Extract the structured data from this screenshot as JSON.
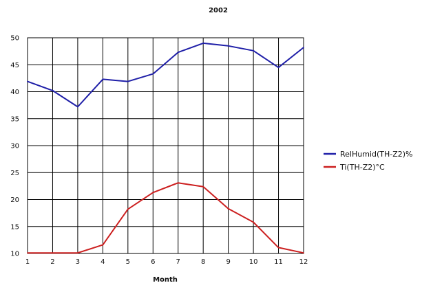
{
  "chart_data": {
    "type": "line",
    "title": "2002",
    "xlabel": "Month",
    "ylabel": "",
    "x": [
      1,
      2,
      3,
      4,
      5,
      6,
      7,
      8,
      9,
      10,
      11,
      12
    ],
    "xlim": [
      1,
      12
    ],
    "ylim": [
      10,
      50
    ],
    "x_ticks": [
      "1",
      "2",
      "3",
      "4",
      "5",
      "6",
      "7",
      "8",
      "9",
      "10",
      "11",
      "12"
    ],
    "y_ticks": [
      "10",
      "15",
      "20",
      "25",
      "30",
      "35",
      "40",
      "45",
      "50"
    ],
    "grid": true,
    "legend_position": "right",
    "series": [
      {
        "name": "RelHumid(TH-Z2)%",
        "color": "#1f1fa8",
        "values": [
          41.9,
          40.2,
          37.2,
          42.3,
          41.9,
          43.3,
          47.3,
          49.0,
          48.5,
          47.6,
          44.5,
          48.2
        ]
      },
      {
        "name": "Ti(TH-Z2)°C",
        "color": "#cc1f1f",
        "values": [
          10.1,
          10.1,
          10.1,
          11.6,
          18.2,
          21.3,
          23.1,
          22.4,
          18.3,
          15.8,
          11.1,
          10.1
        ]
      }
    ]
  }
}
